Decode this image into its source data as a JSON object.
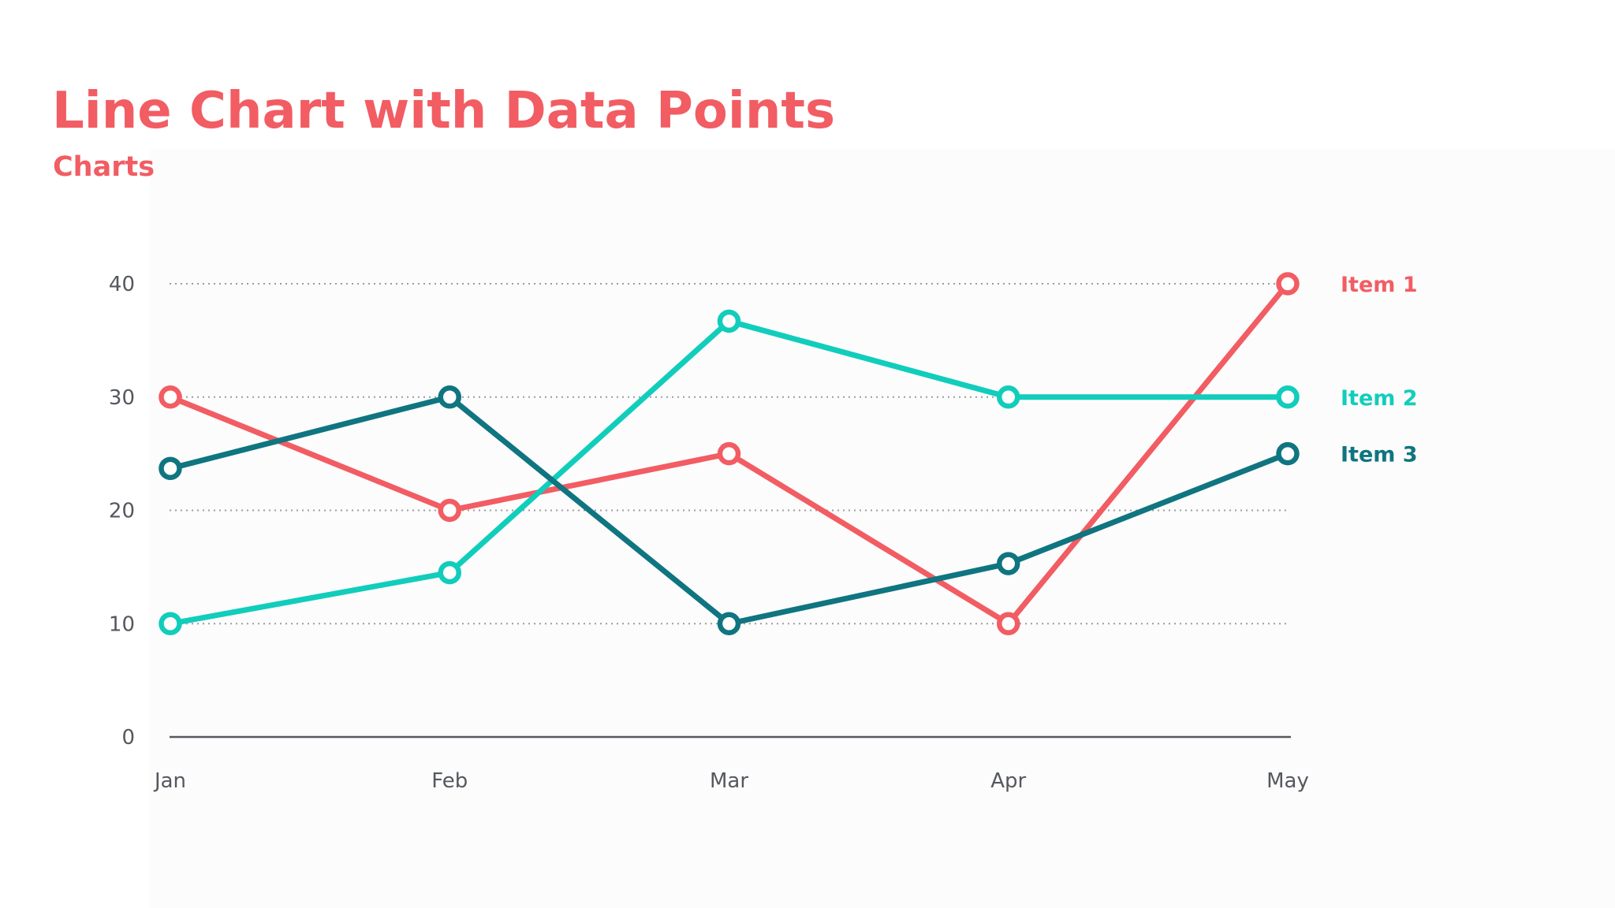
{
  "header": {
    "title": "Line Chart with Data Points",
    "subtitle": "Charts"
  },
  "chart_data": {
    "type": "line",
    "title": "Line Chart with Data Points",
    "subtitle": "Charts",
    "xlabel": "",
    "ylabel": "",
    "categories": [
      "Jan",
      "Feb",
      "Mar",
      "Apr",
      "May"
    ],
    "ylim": [
      0,
      40
    ],
    "yticks": [
      0,
      10,
      20,
      30,
      40
    ],
    "grid": true,
    "legend": "right",
    "markers": "hollow-circle",
    "series": [
      {
        "name": "Item 1",
        "color": "#f25c63",
        "values": [
          30,
          20,
          25,
          10,
          40
        ]
      },
      {
        "name": "Item 2",
        "color": "#11cdbb",
        "values": [
          10,
          14.5,
          36.7,
          30,
          30
        ]
      },
      {
        "name": "Item 3",
        "color": "#0f7580",
        "values": [
          23.7,
          30,
          10,
          15.3,
          25
        ]
      }
    ]
  }
}
